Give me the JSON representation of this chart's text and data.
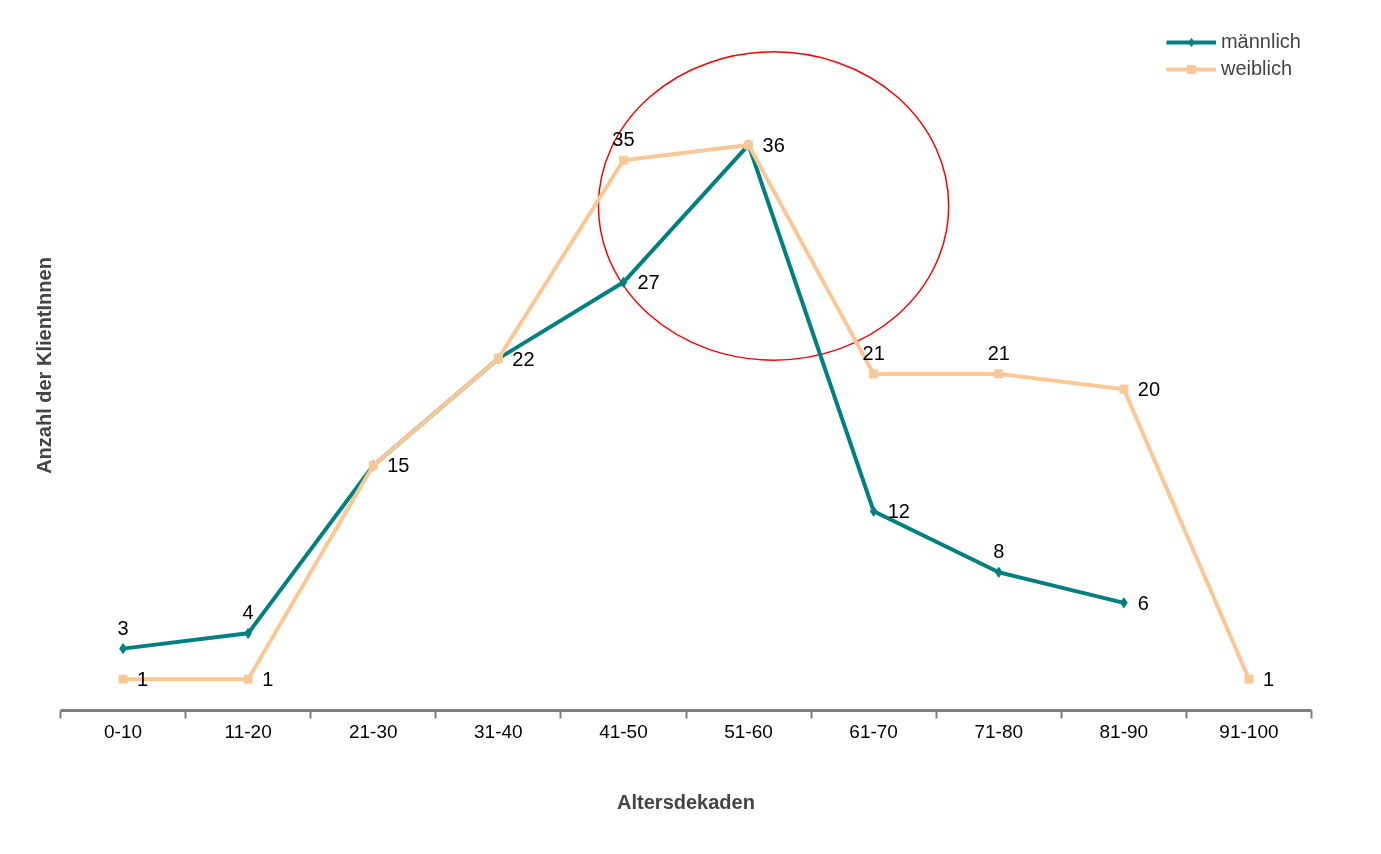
{
  "chart_data": {
    "type": "line",
    "xlabel": "Altersdekaden",
    "ylabel": "Anzahl der KlientInnen",
    "categories": [
      "0-10",
      "11-20",
      "21-30",
      "31-40",
      "41-50",
      "51-60",
      "61-70",
      "71-80",
      "81-90",
      "91-100"
    ],
    "series": [
      {
        "name": "männlich",
        "color": "#008080",
        "marker": "diamond",
        "values": [
          3,
          4,
          15,
          22,
          27,
          36,
          12,
          8,
          6,
          null
        ],
        "value_labels": [
          "3",
          "4",
          null,
          null,
          "27",
          null,
          "12",
          "8",
          "6",
          null
        ]
      },
      {
        "name": "weiblich",
        "color": "#fac896",
        "marker": "square",
        "values": [
          1,
          1,
          15,
          22,
          35,
          36,
          21,
          21,
          20,
          1
        ],
        "value_labels": [
          "1",
          "1",
          "15",
          "22",
          "35",
          "36",
          "21",
          "21",
          "20",
          "1"
        ]
      }
    ],
    "tick_labels": "x",
    "legend": "top right",
    "grid": false,
    "line_style": "solid"
  }
}
